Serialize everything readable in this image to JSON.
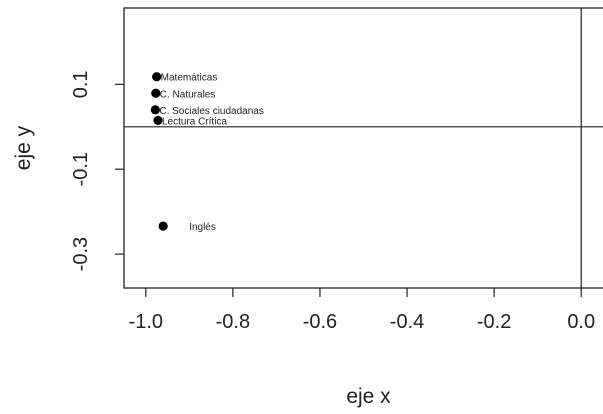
{
  "chart_data": {
    "type": "scatter",
    "xlabel": "eje x",
    "ylabel": "eje y",
    "xlim": [
      -1.05,
      0.05
    ],
    "ylim": [
      -0.38,
      0.28
    ],
    "x_ticks": [
      {
        "value": -1.0,
        "label": "-1.0"
      },
      {
        "value": -0.8,
        "label": "-0.8"
      },
      {
        "value": -0.6,
        "label": "-0.6"
      },
      {
        "value": -0.4,
        "label": "-0.4"
      },
      {
        "value": -0.2,
        "label": "-0.2"
      },
      {
        "value": 0.0,
        "label": "0.0"
      }
    ],
    "y_ticks": [
      {
        "value": 0.1,
        "label": "0.1"
      },
      {
        "value": -0.1,
        "label": "-0.1"
      },
      {
        "value": -0.3,
        "label": "-0.3"
      }
    ],
    "reference_lines": {
      "horizontal": 0,
      "vertical": 0
    },
    "points": [
      {
        "label": "Matemáticas",
        "x": -0.975,
        "y": 0.118
      },
      {
        "label": "C. Naturales",
        "x": -0.977,
        "y": 0.079
      },
      {
        "label": "C. Sociales ciudadanas",
        "x": -0.978,
        "y": 0.04
      },
      {
        "label": "Lectura Crítica",
        "x": -0.972,
        "y": 0.015
      },
      {
        "label": "Inglés",
        "x": -0.96,
        "y": -0.234
      }
    ],
    "grid": false,
    "marker_color": "#000000"
  }
}
